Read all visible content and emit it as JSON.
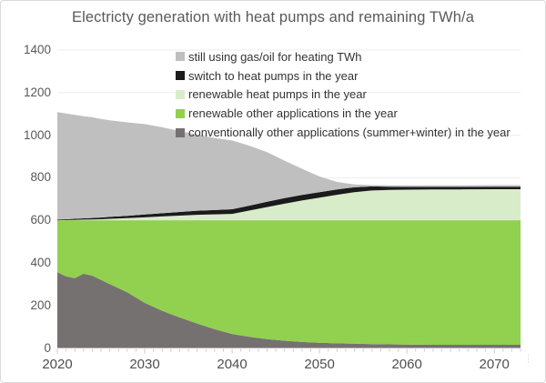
{
  "title": "Electricty generation with heat pumps and remaining TWh/a",
  "decorations": {
    "more_dots": "⋮"
  },
  "chart_data": {
    "type": "area",
    "stacked": true,
    "title": "Electricty generation with heat pumps and remaining TWh/a",
    "xlabel": "",
    "ylabel": "",
    "xlim": [
      2020,
      2073
    ],
    "ylim": [
      0,
      1400
    ],
    "x_ticks": [
      2020,
      2030,
      2040,
      2050,
      2060,
      2070
    ],
    "y_ticks": [
      0,
      200,
      400,
      600,
      800,
      1000,
      1200,
      1400
    ],
    "grid": "horizontal",
    "grid_color": "#ededed",
    "tick_color": "#c9c9c9",
    "axis_text_color": "#595959",
    "legend_position": "top-inside",
    "x": [
      2020,
      2021,
      2022,
      2023,
      2024,
      2025,
      2026,
      2028,
      2030,
      2032,
      2034,
      2036,
      2038,
      2040,
      2042,
      2044,
      2046,
      2048,
      2050,
      2052,
      2054,
      2056,
      2058,
      2060,
      2063,
      2066,
      2070,
      2073
    ],
    "series": [
      {
        "key": "conventionally-other-applications",
        "name": "conventionally other applications (summer+winter) in the year",
        "color": "#767171",
        "values": [
          356,
          337,
          328,
          349,
          340,
          320,
          300,
          262,
          212,
          175,
          143,
          115,
          88,
          66,
          52,
          42,
          34,
          28,
          25,
          22,
          20,
          18,
          17,
          16,
          15,
          15,
          15,
          15
        ]
      },
      {
        "key": "renewable-other-applications",
        "name": "renewable other applications in the year",
        "color": "#92d050",
        "values": [
          244,
          263,
          272,
          251,
          260,
          280,
          300,
          338,
          388,
          425,
          457,
          485,
          512,
          534,
          548,
          558,
          566,
          572,
          575,
          578,
          580,
          582,
          583,
          584,
          585,
          585,
          585,
          585
        ]
      },
      {
        "key": "renewable-heat-pumps",
        "name": "renewable heat pumps in the year",
        "color": "#d9ecca",
        "values": [
          0,
          1,
          2,
          3,
          4,
          5,
          7,
          10,
          14,
          18,
          22,
          26,
          28,
          30,
          46,
          62,
          78,
          93,
          106,
          120,
          132,
          140,
          143,
          144,
          145,
          145,
          146,
          146
        ]
      },
      {
        "key": "switch-to-heat-pumps",
        "name": "switch to heat pumps in the year",
        "color": "#1b1b1b",
        "values": [
          3,
          4,
          5,
          6,
          7,
          8,
          9,
          11,
          13,
          15,
          17,
          19,
          20,
          22,
          23,
          25,
          26,
          26,
          26,
          25,
          23,
          19,
          15,
          13,
          12,
          12,
          12,
          12
        ]
      },
      {
        "key": "still-using-gas-oil",
        "name": "still using gas/oil for heating TWh",
        "color": "#bfbfbf",
        "values": [
          505,
          497,
          488,
          480,
          473,
          463,
          454,
          439,
          425,
          404,
          380,
          358,
          338,
          323,
          281,
          233,
          176,
          123,
          74,
          35,
          13,
          6,
          6,
          7,
          7,
          7,
          7,
          7
        ]
      }
    ],
    "legend": [
      {
        "label": "still using gas/oil for heating TWh",
        "color": "#bfbfbf"
      },
      {
        "label": "switch to heat pumps in the year",
        "color": "#1b1b1b"
      },
      {
        "label": "renewable heat pumps in the year",
        "color": "#d9ecca"
      },
      {
        "label": "renewable other applications in the year",
        "color": "#92d050"
      },
      {
        "label": "conventionally other applications (summer+winter) in the year",
        "color": "#767171"
      }
    ]
  }
}
